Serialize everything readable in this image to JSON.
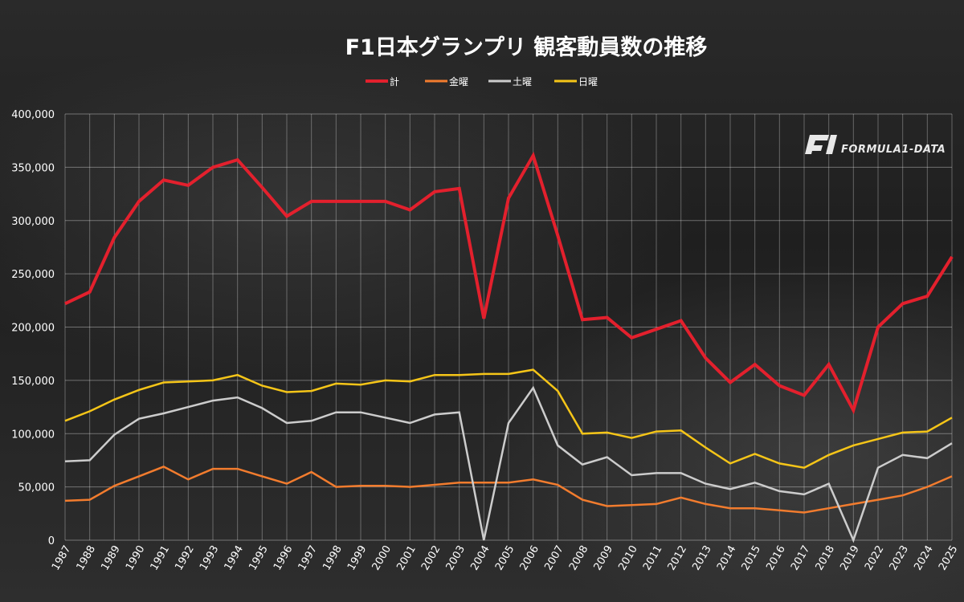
{
  "logo": {
    "text": "FORMULA1-DATA"
  },
  "chart_data": {
    "type": "line",
    "title": "F1日本グランプリ 観客動員数の推移",
    "xlabel": "",
    "ylabel": "",
    "ylim": [
      0,
      400000
    ],
    "y_ticks": [
      0,
      50000,
      100000,
      150000,
      200000,
      250000,
      300000,
      350000,
      400000
    ],
    "y_tick_labels": [
      "0",
      "50,000",
      "100,000",
      "150,000",
      "200,000",
      "250,000",
      "300,000",
      "350,000",
      "400,000"
    ],
    "grid": true,
    "legend_position": "top-center",
    "categories": [
      "1987",
      "1988",
      "1989",
      "1990",
      "1991",
      "1992",
      "1993",
      "1994",
      "1995",
      "1996",
      "1997",
      "1998",
      "1999",
      "2000",
      "2001",
      "2002",
      "2003",
      "2004",
      "2005",
      "2006",
      "2007",
      "2008",
      "2009",
      "2010",
      "2011",
      "2012",
      "2013",
      "2014",
      "2015",
      "2016",
      "2017",
      "2018",
      "2019",
      "2022",
      "2023",
      "2024",
      "2025"
    ],
    "series": [
      {
        "name": "計",
        "color": "#e3202d",
        "values": [
          222000,
          233000,
          284000,
          318000,
          338000,
          333000,
          350000,
          357000,
          331000,
          304000,
          318000,
          318000,
          318000,
          318000,
          310000,
          327000,
          330000,
          208000,
          321000,
          361000,
          286000,
          207000,
          209000,
          190000,
          198000,
          206000,
          171000,
          148000,
          165000,
          145000,
          136000,
          165000,
          122000,
          200000,
          222000,
          229000,
          266000
        ]
      },
      {
        "name": "金曜",
        "color": "#f27c2e",
        "values": [
          37000,
          38000,
          51000,
          60000,
          69000,
          57000,
          67000,
          67000,
          60000,
          53000,
          64000,
          50000,
          51000,
          51000,
          50000,
          52000,
          54000,
          54000,
          54000,
          57000,
          52000,
          38000,
          32000,
          33000,
          34000,
          40000,
          34000,
          30000,
          30000,
          28000,
          26000,
          30000,
          34000,
          38000,
          42000,
          50000,
          60000
        ]
      },
      {
        "name": "土曜",
        "color": "#cccccc",
        "values": [
          74000,
          75000,
          99000,
          114000,
          119000,
          125000,
          131000,
          134000,
          124000,
          110000,
          112000,
          120000,
          120000,
          115000,
          110000,
          118000,
          120000,
          0,
          110000,
          143000,
          89000,
          71000,
          78000,
          61000,
          63000,
          63000,
          53000,
          48000,
          54000,
          46000,
          43000,
          53000,
          0,
          68000,
          80000,
          77000,
          91000
        ]
      },
      {
        "name": "日曜",
        "color": "#f5c518",
        "values": [
          112000,
          121000,
          132000,
          141000,
          148000,
          149000,
          150000,
          155000,
          145000,
          139000,
          140000,
          147000,
          146000,
          150000,
          149000,
          155000,
          155000,
          156000,
          156000,
          160000,
          140000,
          100000,
          101000,
          96000,
          102000,
          103000,
          87000,
          72000,
          81000,
          72000,
          68000,
          80000,
          89000,
          95000,
          101000,
          102000,
          115000
        ]
      }
    ]
  }
}
